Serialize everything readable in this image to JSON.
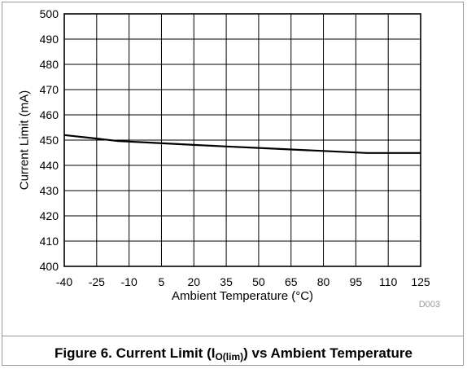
{
  "chart_data": {
    "type": "line",
    "xlabel": "Ambient Temperature (°C)",
    "ylabel": "Current Limit (mA)",
    "xlim": [
      -40,
      125
    ],
    "ylim": [
      400,
      500
    ],
    "x_ticks": [
      "-40",
      "-25",
      "-10",
      "5",
      "20",
      "35",
      "50",
      "65",
      "80",
      "95",
      "110",
      "125"
    ],
    "y_ticks": [
      "500",
      "490",
      "480",
      "470",
      "460",
      "450",
      "440",
      "430",
      "420",
      "410",
      "400"
    ],
    "grid": true,
    "series": [
      {
        "x": [
          -40,
          -25,
          -15,
          0,
          20,
          35,
          50,
          65,
          80,
          95,
          100,
          110,
          125
        ],
        "values": [
          452,
          450.6,
          449.6,
          449,
          448.1,
          447.5,
          446.9,
          446.3,
          445.7,
          445.1,
          444.9,
          444.9,
          444.9
        ],
        "color": "#000000"
      }
    ],
    "watermark": "D003"
  },
  "caption": {
    "prefix": "Figure 6. Current Limit (I",
    "sub": "O(lim)",
    "suffix": ") vs Ambient Temperature"
  }
}
